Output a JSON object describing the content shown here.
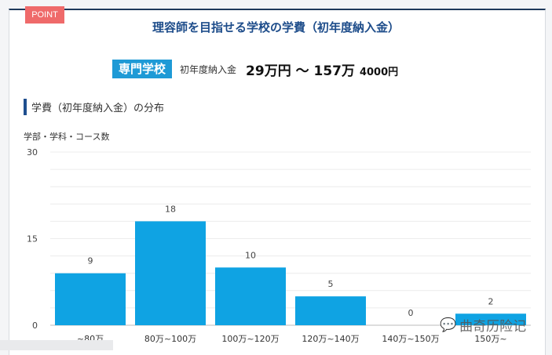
{
  "badge": "POINT",
  "title": "理容師を目指せる学校の学費（初年度納入金）",
  "fee": {
    "school_type": "専門学校",
    "label": "初年度納入金",
    "range_main": "29万円 ～ 157万",
    "range_suffix": "4000円"
  },
  "section": {
    "heading": "学費（初年度納入金）の分布"
  },
  "watermark": "曲奇历险记",
  "colors": {
    "bar": "#0fa3e3",
    "title": "#1d4c8a",
    "badge": "#ef6a6a",
    "tag": "#1e9ad6"
  },
  "chart_data": {
    "type": "bar",
    "title": "学費（初年度納入金）の分布",
    "xlabel": "",
    "ylabel": "学部・学科・コース数",
    "categories": [
      "~80万",
      "80万~100万",
      "100万~120万",
      "120万~140万",
      "140万~150万",
      "150万~"
    ],
    "values": [
      9,
      18,
      10,
      5,
      0,
      2
    ],
    "ylim": [
      0,
      30
    ],
    "yticks": [
      0,
      15,
      30
    ],
    "grid": true,
    "legend": null
  }
}
